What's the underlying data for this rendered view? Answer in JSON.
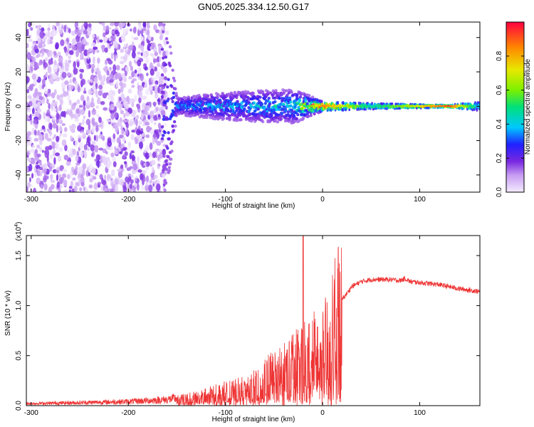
{
  "title": "GN05.2025.334.12.50.G17",
  "chart_data": [
    {
      "type": "heatmap",
      "xlabel": "Height of straight line (km)",
      "ylabel": "Frequency (Hz)",
      "xlim": [
        -305,
        162
      ],
      "ylim": [
        -50,
        49
      ],
      "xticks": [
        -300,
        -200,
        -100,
        0,
        100
      ],
      "yticks": [
        -40,
        -20,
        0,
        20,
        40
      ],
      "colorbar": {
        "label": "Normalized spectral amplitude",
        "range": [
          0,
          1
        ],
        "ticks": [
          "0.0",
          "0.2",
          "0.4",
          "0.6",
          "0.8"
        ],
        "colors": [
          "#f4ecff",
          "#c79cf2",
          "#7a28e0",
          "#2020ff",
          "#00c8ff",
          "#00e07a",
          "#7cf000",
          "#e8e800",
          "#ff8800",
          "#ff0040"
        ]
      },
      "description_points": [
        {
          "x": -305,
          "spread": 49,
          "amp": 0.2
        },
        {
          "x": -160,
          "spread": 49,
          "amp": 0.2
        },
        {
          "x": -150,
          "spread": 5,
          "amp": 0.25
        },
        {
          "x": -100,
          "spread": 8,
          "amp": 0.3
        },
        {
          "x": -30,
          "spread": 10,
          "amp": 0.35
        },
        {
          "x": 0,
          "spread": 3,
          "amp": 0.9
        },
        {
          "x": 50,
          "spread": 2,
          "amp": 0.5
        },
        {
          "x": 130,
          "spread": 1,
          "amp": 0.95
        },
        {
          "x": 162,
          "spread": 3,
          "amp": 0.4
        }
      ]
    },
    {
      "type": "line",
      "xlabel": "Height of straight line (km)",
      "ylabel": "SNR (10 * v/v)",
      "yexp": "(x10",
      "yexp_power": "4",
      "xlim": [
        -305,
        162
      ],
      "ylim": [
        0,
        1.7
      ],
      "xticks": [
        -300,
        -200,
        -100,
        0,
        100
      ],
      "yticks": [
        "0.0",
        "0.5",
        "1.0",
        "1.5"
      ],
      "color": "#ee3333",
      "envelope": {
        "x": [
          -305,
          -250,
          -200,
          -160,
          -140,
          -120,
          -100,
          -80,
          -60,
          -40,
          -30,
          -20,
          -15,
          -10,
          -5,
          0,
          5,
          10,
          15,
          20,
          25,
          30,
          40,
          50,
          60,
          70,
          80,
          85,
          90,
          100,
          120,
          140,
          162
        ],
        "y": [
          0.02,
          0.03,
          0.04,
          0.06,
          0.09,
          0.13,
          0.18,
          0.22,
          0.3,
          0.4,
          0.48,
          0.55,
          0.6,
          0.62,
          0.64,
          0.65,
          0.7,
          0.85,
          0.98,
          1.06,
          1.12,
          1.19,
          1.24,
          1.26,
          1.26,
          1.26,
          1.25,
          1.27,
          1.24,
          1.23,
          1.21,
          1.17,
          1.14
        ]
      },
      "spike": {
        "x": -20,
        "y": 1.7
      }
    }
  ]
}
